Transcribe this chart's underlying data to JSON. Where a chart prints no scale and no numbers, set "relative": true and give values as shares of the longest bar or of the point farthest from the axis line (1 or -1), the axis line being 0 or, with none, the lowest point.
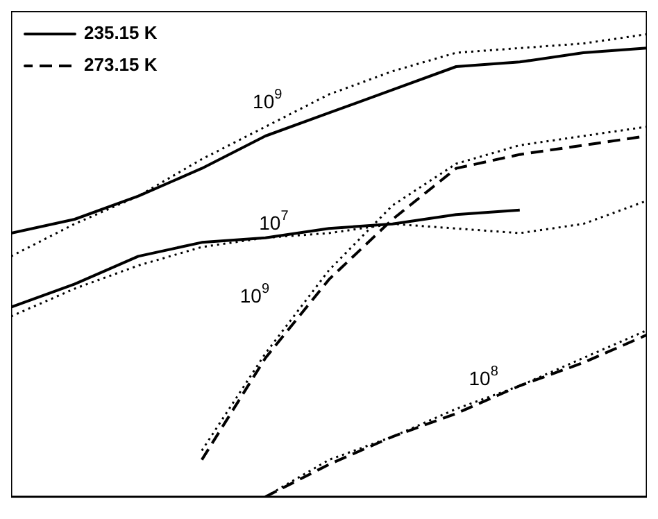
{
  "chart_data": {
    "type": "line",
    "relative": true,
    "categories": [
      null,
      null,
      null,
      null,
      null,
      null,
      null,
      null,
      null,
      null,
      null
    ],
    "series": [
      {
        "name": "235.15 K",
        "color": "#000000",
        "line_style": "solid",
        "values": [
          0.57,
          0.6,
          0.65,
          0.71,
          0.78,
          0.83,
          0.88,
          0.93,
          0.94,
          0.96,
          0.97
        ]
      },
      {
        "color": "#000000",
        "line_style": "solid",
        "values": [
          0.41,
          0.46,
          0.52,
          0.55,
          0.56,
          0.58,
          0.59,
          0.61,
          0.62,
          null,
          null
        ]
      },
      {
        "name": "273.15 K",
        "color": "#000000",
        "line_style": "dashed",
        "values": [
          null,
          null,
          null,
          0.08,
          0.3,
          0.47,
          0.6,
          0.71,
          0.74,
          0.76,
          0.78
        ]
      },
      {
        "color": "#000000",
        "line_style": "dashed",
        "values": [
          null,
          null,
          null,
          null,
          0.0,
          0.07,
          0.13,
          0.18,
          0.24,
          0.29,
          0.35
        ]
      },
      {
        "color": "#000000",
        "line_style": "dotted",
        "values": [
          0.52,
          0.59,
          0.65,
          0.73,
          0.8,
          0.87,
          0.92,
          0.96,
          0.97,
          0.98,
          1
        ]
      },
      {
        "color": "#000000",
        "line_style": "dotted",
        "values": [
          0.39,
          0.45,
          0.5,
          0.54,
          0.56,
          0.57,
          0.59,
          0.58,
          0.57,
          0.59,
          0.64
        ]
      },
      {
        "color": "#000000",
        "line_style": "dotted",
        "values": [
          null,
          null,
          null,
          0.1,
          0.31,
          0.49,
          0.63,
          0.72,
          0.76,
          0.78,
          0.8
        ]
      },
      {
        "color": "#000000",
        "line_style": "dotted",
        "values": [
          null,
          null,
          null,
          null,
          0.0,
          0.08,
          0.13,
          0.19,
          0.24,
          0.3,
          0.36
        ]
      }
    ],
    "annotations": [
      "10$^{9}$",
      "10$^{7}$",
      "10$^{9}$",
      "10$^{8}$"
    ],
    "legend": "top left",
    "marker": "none"
  }
}
